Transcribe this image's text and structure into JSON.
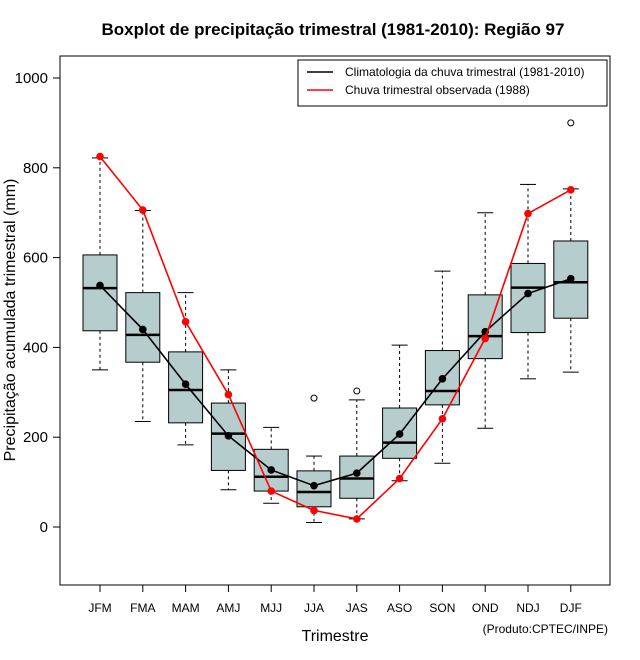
{
  "chart_data": {
    "type": "boxplot",
    "title": "Boxplot de precipitação trimestral (1981-2010): Região 97",
    "xlabel": "Trimestre",
    "ylabel": "Precipitação acumulada trimestral (mm)",
    "ylim": [
      -130,
      1040
    ],
    "yticks": [
      "0",
      "200",
      "400",
      "600",
      "800",
      "1000"
    ],
    "categories": [
      "JFM",
      "FMA",
      "MAM",
      "AMJ",
      "MJJ",
      "JJA",
      "JAS",
      "ASO",
      "SON",
      "OND",
      "NDJ",
      "DJF"
    ],
    "boxes": [
      {
        "whisker_low": 350,
        "q1": 437,
        "median": 532,
        "q3": 606,
        "whisker_high": 822,
        "outliers": []
      },
      {
        "whisker_low": 235,
        "q1": 367,
        "median": 428,
        "q3": 522,
        "whisker_high": 705,
        "outliers": []
      },
      {
        "whisker_low": 183,
        "q1": 232,
        "median": 305,
        "q3": 390,
        "whisker_high": 522,
        "outliers": []
      },
      {
        "whisker_low": 83,
        "q1": 126,
        "median": 208,
        "q3": 276,
        "whisker_high": 350,
        "outliers": []
      },
      {
        "whisker_low": 53,
        "q1": 80,
        "median": 112,
        "q3": 173,
        "whisker_high": 222,
        "outliers": []
      },
      {
        "whisker_low": 10,
        "q1": 45,
        "median": 78,
        "q3": 125,
        "whisker_high": 158,
        "outliers": [
          287
        ]
      },
      {
        "whisker_low": 18,
        "q1": 64,
        "median": 108,
        "q3": 158,
        "whisker_high": 283,
        "outliers": [
          303
        ]
      },
      {
        "whisker_low": 103,
        "q1": 153,
        "median": 188,
        "q3": 265,
        "whisker_high": 405,
        "outliers": []
      },
      {
        "whisker_low": 142,
        "q1": 272,
        "median": 303,
        "q3": 393,
        "whisker_high": 570,
        "outliers": []
      },
      {
        "whisker_low": 220,
        "q1": 375,
        "median": 425,
        "q3": 517,
        "whisker_high": 700,
        "outliers": []
      },
      {
        "whisker_low": 330,
        "q1": 433,
        "median": 533,
        "q3": 587,
        "whisker_high": 763,
        "outliers": []
      },
      {
        "whisker_low": 345,
        "q1": 465,
        "median": 545,
        "q3": 637,
        "whisker_high": 753,
        "outliers": [
          900
        ]
      }
    ],
    "series": [
      {
        "name": "Climatologia da chuva trimestral (1981-2010)",
        "color": "#000000",
        "values": [
          538,
          440,
          318,
          203,
          127,
          92,
          120,
          207,
          330,
          435,
          520,
          553
        ]
      },
      {
        "name": "Chuva trimestral observada (1988)",
        "color": "#ff0000",
        "values": [
          825,
          706,
          457,
          295,
          80,
          37,
          18,
          108,
          241,
          420,
          698,
          751
        ]
      }
    ],
    "box_color": "#b6cdcd",
    "legend_position": "top-right",
    "credit": "(Produto:CPTEC/INPE)"
  }
}
